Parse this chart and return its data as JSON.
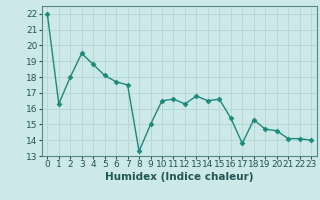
{
  "x": [
    0,
    1,
    2,
    3,
    4,
    5,
    6,
    7,
    8,
    9,
    10,
    11,
    12,
    13,
    14,
    15,
    16,
    17,
    18,
    19,
    20,
    21,
    22,
    23
  ],
  "y": [
    22.0,
    16.3,
    18.0,
    19.5,
    18.8,
    18.1,
    17.7,
    17.5,
    13.3,
    15.0,
    16.5,
    16.6,
    16.3,
    16.8,
    16.5,
    16.6,
    15.4,
    13.8,
    15.3,
    14.7,
    14.6,
    14.1,
    14.1,
    14.0
  ],
  "line_color": "#1a8a7a",
  "marker": "D",
  "marker_size": 2.5,
  "bg_color": "#cce8e8",
  "grid_color": "#b8d8d8",
  "xlabel": "Humidex (Indice chaleur)",
  "ylim": [
    13,
    22.5
  ],
  "yticks": [
    13,
    14,
    15,
    16,
    17,
    18,
    19,
    20,
    21,
    22
  ],
  "xticks": [
    0,
    1,
    2,
    3,
    4,
    5,
    6,
    7,
    8,
    9,
    10,
    11,
    12,
    13,
    14,
    15,
    16,
    17,
    18,
    19,
    20,
    21,
    22,
    23
  ],
  "xlim": [
    -0.5,
    23.5
  ],
  "label_fontsize": 7.5,
  "tick_fontsize": 6.5
}
